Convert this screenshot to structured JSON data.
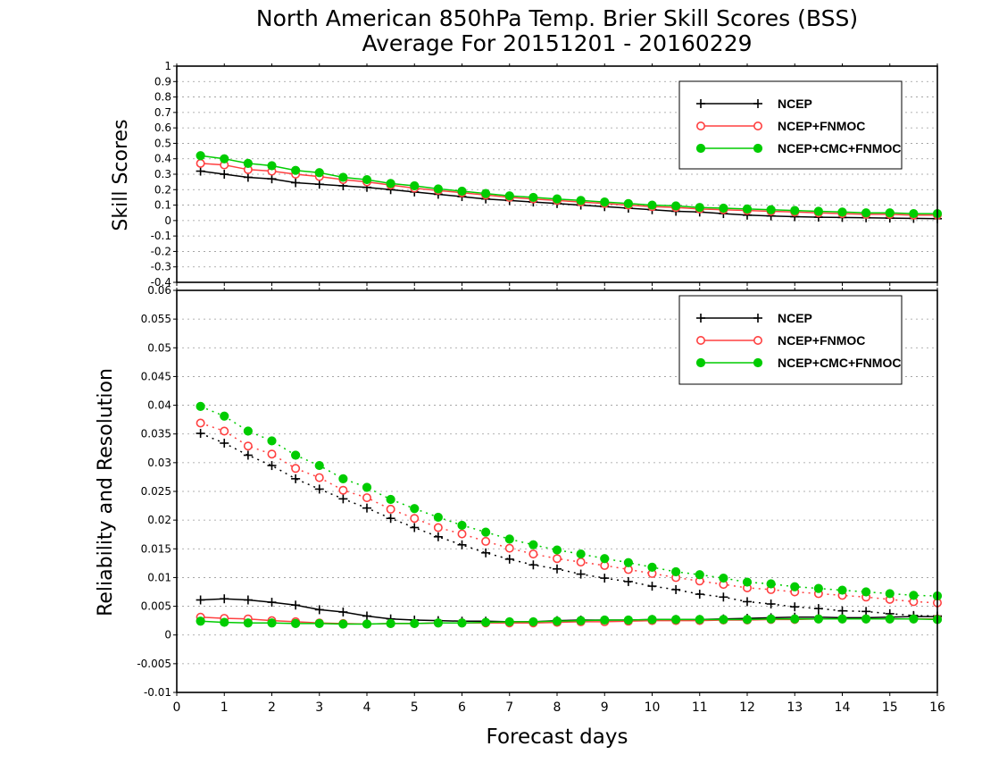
{
  "chart_data": {
    "title": [
      "North American 850hPa Temp. Brier Skill Scores (BSS)",
      "Average For 20151201 - 20160229"
    ],
    "xlabel": "Forecast days",
    "type": "line",
    "colors": {
      "NCEP": "#000000",
      "NCEP+FNMOC": "#ff4040",
      "NCEP+CMC+FNMOC": "#00cc00"
    },
    "panels": [
      {
        "id": "skill",
        "ylabel": "Skill Scores",
        "xlim": [
          0,
          16
        ],
        "ylim": [
          -0.4,
          1
        ],
        "yticks": [
          "-0.4",
          "-0.3",
          "-0.2",
          "-0.1",
          "0",
          "0.1",
          "0.2",
          "0.3",
          "0.4",
          "0.5",
          "0.6",
          "0.7",
          "0.8",
          "0.9",
          "1"
        ],
        "grid": true,
        "legend": {
          "placement": "top-right",
          "entries": [
            "NCEP",
            "NCEP+FNMOC",
            "NCEP+CMC+FNMOC"
          ]
        },
        "x": [
          0.5,
          1,
          1.5,
          2,
          2.5,
          3,
          3.5,
          4,
          4.5,
          5,
          5.5,
          6,
          6.5,
          7,
          7.5,
          8,
          8.5,
          9,
          9.5,
          10,
          10.5,
          11,
          11.5,
          12,
          12.5,
          13,
          13.5,
          14,
          14.5,
          15,
          15.5,
          16
        ],
        "series": [
          {
            "name": "NCEP",
            "marker": "plus",
            "style": "solid",
            "values": [
              0.32,
              0.3,
              0.28,
              0.27,
              0.245,
              0.235,
              0.225,
              0.215,
              0.2,
              0.185,
              0.17,
              0.155,
              0.14,
              0.13,
              0.12,
              0.11,
              0.1,
              0.09,
              0.08,
              0.07,
              0.06,
              0.055,
              0.045,
              0.035,
              0.03,
              0.025,
              0.022,
              0.02,
              0.018,
              0.016,
              0.014,
              0.012
            ]
          },
          {
            "name": "NCEP+FNMOC",
            "marker": "open-circle",
            "style": "solid",
            "values": [
              0.37,
              0.36,
              0.33,
              0.32,
              0.3,
              0.285,
              0.265,
              0.25,
              0.23,
              0.21,
              0.195,
              0.18,
              0.165,
              0.15,
              0.14,
              0.13,
              0.12,
              0.11,
              0.1,
              0.09,
              0.085,
              0.075,
              0.07,
              0.065,
              0.06,
              0.055,
              0.05,
              0.045,
              0.04,
              0.04,
              0.035,
              0.035
            ]
          },
          {
            "name": "NCEP+CMC+FNMOC",
            "marker": "filled-circle",
            "style": "solid",
            "values": [
              0.42,
              0.4,
              0.37,
              0.355,
              0.325,
              0.31,
              0.28,
              0.265,
              0.24,
              0.225,
              0.205,
              0.19,
              0.175,
              0.16,
              0.15,
              0.14,
              0.13,
              0.12,
              0.11,
              0.1,
              0.095,
              0.085,
              0.08,
              0.075,
              0.07,
              0.065,
              0.06,
              0.055,
              0.05,
              0.05,
              0.045,
              0.045
            ]
          }
        ]
      },
      {
        "id": "relres",
        "ylabel": "Reliability and Resolution",
        "xlim": [
          0,
          16
        ],
        "ylim": [
          -0.01,
          0.06
        ],
        "yticks": [
          "-0.01",
          "-0.005",
          "0",
          "0.005",
          "0.01",
          "0.015",
          "0.02",
          "0.025",
          "0.03",
          "0.035",
          "0.04",
          "0.045",
          "0.05",
          "0.055",
          "0.06"
        ],
        "xticks": [
          "0",
          "1",
          "2",
          "3",
          "4",
          "5",
          "6",
          "7",
          "8",
          "9",
          "10",
          "11",
          "12",
          "13",
          "14",
          "15",
          "16"
        ],
        "grid": true,
        "legend": {
          "placement": "top-right",
          "entries": [
            "NCEP",
            "NCEP+FNMOC",
            "NCEP+CMC+FNMOC"
          ]
        },
        "x": [
          0.5,
          1,
          1.5,
          2,
          2.5,
          3,
          3.5,
          4,
          4.5,
          5,
          5.5,
          6,
          6.5,
          7,
          7.5,
          8,
          8.5,
          9,
          9.5,
          10,
          10.5,
          11,
          11.5,
          12,
          12.5,
          13,
          13.5,
          14,
          14.5,
          15,
          15.5,
          16
        ],
        "series": [
          {
            "name": "NCEP",
            "role": "resolution",
            "marker": "plus",
            "style": "dotted",
            "values": [
              0.0351,
              0.0334,
              0.0313,
              0.0295,
              0.0272,
              0.0254,
              0.0237,
              0.0221,
              0.0203,
              0.0187,
              0.0171,
              0.0157,
              0.0143,
              0.0132,
              0.0122,
              0.0115,
              0.0106,
              0.0099,
              0.0093,
              0.0085,
              0.0079,
              0.0071,
              0.0066,
              0.0058,
              0.0054,
              0.0049,
              0.0046,
              0.0042,
              0.0041,
              0.0037,
              0.0034,
              0.0033
            ]
          },
          {
            "name": "NCEP+FNMOC",
            "role": "resolution",
            "marker": "open-circle",
            "style": "dotted",
            "values": [
              0.0369,
              0.0355,
              0.0329,
              0.0315,
              0.029,
              0.0274,
              0.0252,
              0.0239,
              0.0219,
              0.0203,
              0.0187,
              0.0176,
              0.0163,
              0.0151,
              0.0141,
              0.0133,
              0.0127,
              0.0121,
              0.0114,
              0.0107,
              0.01,
              0.0094,
              0.0088,
              0.0082,
              0.0079,
              0.0075,
              0.0072,
              0.0069,
              0.0066,
              0.0062,
              0.0058,
              0.0056
            ]
          },
          {
            "name": "NCEP+CMC+FNMOC",
            "role": "resolution",
            "marker": "filled-circle",
            "style": "dotted",
            "values": [
              0.0398,
              0.0381,
              0.0355,
              0.0338,
              0.0313,
              0.0295,
              0.0272,
              0.0257,
              0.0236,
              0.022,
              0.0205,
              0.0191,
              0.0179,
              0.0167,
              0.0157,
              0.0148,
              0.0141,
              0.0133,
              0.0126,
              0.0118,
              0.011,
              0.0105,
              0.0099,
              0.0092,
              0.0089,
              0.0084,
              0.0081,
              0.0078,
              0.0075,
              0.0072,
              0.0069,
              0.0068
            ]
          },
          {
            "name": "NCEP",
            "role": "reliability",
            "marker": "plus",
            "style": "solid",
            "values": [
              0.0061,
              0.0063,
              0.0061,
              0.0057,
              0.0052,
              0.0044,
              0.004,
              0.0033,
              0.0028,
              0.0026,
              0.0025,
              0.0024,
              0.0024,
              0.0023,
              0.0023,
              0.0025,
              0.0026,
              0.0026,
              0.0026,
              0.0027,
              0.0027,
              0.0027,
              0.0028,
              0.0029,
              0.003,
              0.0031,
              0.0031,
              0.003,
              0.003,
              0.0031,
              0.0032,
              0.0032
            ]
          },
          {
            "name": "NCEP+FNMOC",
            "role": "reliability",
            "marker": "open-circle",
            "style": "solid",
            "values": [
              0.0031,
              0.0029,
              0.0028,
              0.0025,
              0.0023,
              0.0021,
              0.002,
              0.0019,
              0.002,
              0.002,
              0.0021,
              0.0021,
              0.0021,
              0.0021,
              0.0021,
              0.0022,
              0.0023,
              0.0023,
              0.0024,
              0.0025,
              0.0025,
              0.0025,
              0.0026,
              0.0026,
              0.0027,
              0.0027,
              0.0028,
              0.0028,
              0.0028,
              0.0028,
              0.0028,
              0.0028
            ]
          },
          {
            "name": "NCEP+CMC+FNMOC",
            "role": "reliability",
            "marker": "filled-circle",
            "style": "solid",
            "values": [
              0.0024,
              0.0022,
              0.0021,
              0.0021,
              0.002,
              0.002,
              0.0019,
              0.0019,
              0.002,
              0.002,
              0.0021,
              0.0021,
              0.0022,
              0.0023,
              0.0023,
              0.0024,
              0.0025,
              0.0026,
              0.0026,
              0.0027,
              0.0027,
              0.0027,
              0.0027,
              0.0027,
              0.0028,
              0.0028,
              0.0028,
              0.0028,
              0.0028,
              0.0028,
              0.0028,
              0.0027
            ]
          }
        ]
      }
    ]
  }
}
